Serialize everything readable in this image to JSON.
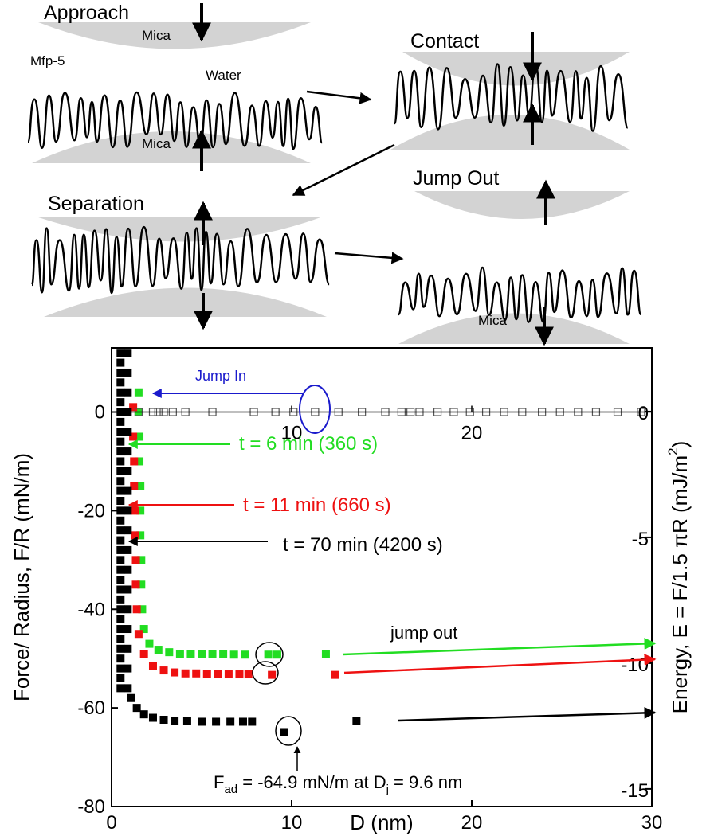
{
  "schematic": {
    "labels": [
      "Approach",
      "Mica",
      "Mfp-5",
      "Water",
      "Mica",
      "Contact",
      "Jump Out",
      "Separation",
      "Mica"
    ]
  },
  "chart_data": {
    "type": "scatter",
    "x_label": "D (nm)",
    "y_label": "Force/ Radius, F/R (mN/m)",
    "y2_label_parts": [
      "Energy, E = F/1.5 πR (mJ/m",
      "2",
      ")"
    ],
    "xlim": [
      0,
      30
    ],
    "xticks": [
      0,
      10,
      20,
      30
    ],
    "x2ticks": [
      10,
      20
    ],
    "ylim": [
      -80,
      13
    ],
    "yticks": [
      -80,
      -60,
      -40,
      -20,
      0
    ],
    "y2lim": [
      -15.7,
      2.53
    ],
    "y2ticks": [
      -15,
      -10,
      -5,
      0
    ],
    "series": [
      {
        "name": "t = 6 min (360 s)",
        "color": "#22dd22",
        "x": [
          1.5,
          1.5,
          1.55,
          1.55,
          1.6,
          1.6,
          1.6,
          1.65,
          1.65,
          1.7,
          1.8,
          2.1,
          2.6,
          3.2,
          3.8,
          4.4,
          5.0,
          5.6,
          6.2,
          6.8,
          7.4,
          8.7,
          9.2,
          11.9
        ],
        "values": [
          4,
          0,
          -5,
          -10,
          -15,
          -20,
          -25,
          -30,
          -35,
          -40,
          -44,
          -47,
          -48.2,
          -48.7,
          -49,
          -49,
          -49.1,
          -49.1,
          -49.1,
          -49.2,
          -49.2,
          -49.2,
          -49.2,
          -49.1
        ]
      },
      {
        "name": "t = 11 min (660 s)",
        "color": "#ee1111",
        "x": [
          1.2,
          1.2,
          1.25,
          1.25,
          1.3,
          1.3,
          1.35,
          1.35,
          1.4,
          1.5,
          1.8,
          2.3,
          2.9,
          3.5,
          4.1,
          4.7,
          5.3,
          5.9,
          6.5,
          7.1,
          7.6,
          8.9,
          12.4
        ],
        "values": [
          1,
          -5,
          -10,
          -15,
          -20,
          -25,
          -30,
          -35,
          -40,
          -45,
          -49,
          -51.5,
          -52.4,
          -52.8,
          -53,
          -53,
          -53.1,
          -53.1,
          -53.2,
          -53.2,
          -53.2,
          -53.3,
          -53.3
        ]
      },
      {
        "name": "t = 70 min (4200 s)",
        "color": "#000000",
        "x": [
          0.5,
          0.5,
          0.5,
          0.5,
          0.5,
          0.5,
          0.5,
          0.5,
          0.5,
          0.5,
          0.5,
          0.5,
          0.5,
          0.5,
          0.5,
          0.5,
          0.5,
          0.5,
          0.5,
          0.5,
          0.5,
          0.5,
          0.5,
          0.5,
          0.5,
          0.5,
          0.5,
          0.5,
          0.5,
          0.5,
          0.5,
          0.5,
          0.5,
          0.5,
          0.5,
          0.9,
          0.9,
          0.9,
          0.9,
          0.9,
          0.9,
          0.9,
          0.9,
          0.9,
          0.9,
          0.9,
          0.9,
          0.9,
          0.9,
          0.9,
          0.9,
          0.9,
          0.9,
          1.1,
          1.4,
          1.8,
          2.3,
          2.9,
          3.5,
          4.2,
          5.0,
          5.8,
          6.6,
          7.3,
          7.8,
          9.6,
          13.6
        ],
        "values": [
          12,
          10,
          8,
          6,
          4,
          2,
          0,
          -2,
          -4,
          -6,
          -8,
          -10,
          -12,
          -14,
          -16,
          -18,
          -20,
          -22,
          -24,
          -26,
          -28,
          -30,
          -32,
          -34,
          -36,
          -38,
          -40,
          -42,
          -44,
          -46,
          -48,
          -50,
          -52,
          -54,
          -56,
          12,
          8,
          4,
          0,
          -4,
          -8,
          -12,
          -16,
          -20,
          -24,
          -28,
          -32,
          -36,
          -40,
          -44,
          -48,
          -52,
          -56,
          -58,
          -60,
          -61.3,
          -62,
          -62.4,
          -62.6,
          -62.7,
          -62.8,
          -62.8,
          -62.8,
          -62.8,
          -62.8,
          -64.9,
          -62.6
        ]
      },
      {
        "color": "#555555",
        "marker": "open",
        "x": [
          1.5,
          2.3,
          2.6,
          2.9,
          3.4,
          4.1,
          5.6,
          7.9,
          9.1,
          10.1,
          11.3,
          12.6,
          13.9,
          15.2,
          16.1,
          16.6,
          17.1,
          18.1,
          19.0,
          19.9,
          20.8,
          21.8,
          22.8,
          23.9,
          24.9,
          25.9,
          26.9,
          28.1,
          29.4
        ],
        "values": [
          0,
          0,
          0,
          0,
          0,
          0,
          0,
          0,
          0,
          0,
          0,
          0,
          0,
          0,
          0,
          0,
          0,
          0,
          0,
          0,
          0,
          0,
          0,
          0,
          0,
          0,
          0,
          0,
          0
        ]
      }
    ],
    "annotations": {
      "jump_in": "Jump In",
      "jump_out": "jump out",
      "fad_parts": [
        "F",
        "ad",
        " = -64.9 mN/m at D",
        "j",
        " = 9.6 nm"
      ]
    }
  }
}
